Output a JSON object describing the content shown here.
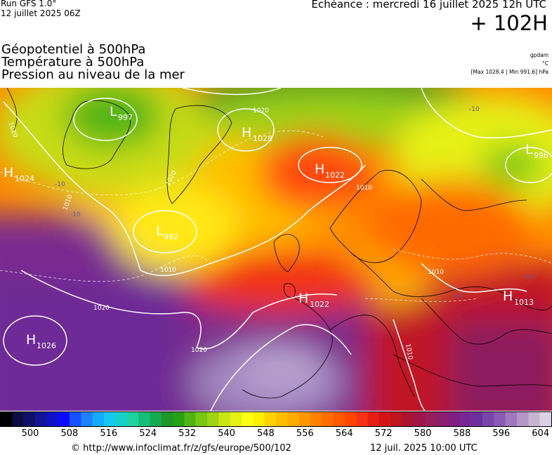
{
  "header": {
    "run_line1": "Run GFS 1.0°",
    "run_line2": "12 juillet 2025 06Z",
    "echeance": "Echéance : mercredi 16 juillet 2025 12h UTC",
    "lead": "+ 102H"
  },
  "titles": [
    "Géopotentiel à 500hPa",
    "Température à 500hPa",
    "Pression au niveau de la mer"
  ],
  "units": {
    "geopotential": "gpdam",
    "temperature": "°C",
    "pressure_range": "[Max 1028.4 | Min 991.6] hPa"
  },
  "pressure_centers": [
    {
      "type": "L",
      "value": "997"
    },
    {
      "type": "H",
      "value": "1028"
    },
    {
      "type": "H",
      "value": "1024"
    },
    {
      "type": "H",
      "value": "1022"
    },
    {
      "type": "L",
      "value": "996"
    },
    {
      "type": "L",
      "value": "992"
    },
    {
      "type": "H",
      "value": "1022"
    },
    {
      "type": "H",
      "value": "1013"
    },
    {
      "type": "H",
      "value": "1026"
    }
  ],
  "isobar_labels": [
    "1020",
    "1020",
    "1020",
    "1010",
    "1010",
    "1010",
    "1010",
    "1020",
    "1020",
    "1010"
  ],
  "isotherm_labels": [
    "-10",
    "-10",
    "-10",
    "-10",
    "-10"
  ],
  "colorbar": {
    "tick_labels": [
      "500",
      "508",
      "516",
      "524",
      "532",
      "540",
      "548",
      "556",
      "564",
      "572",
      "580",
      "588",
      "596",
      "604"
    ],
    "colors": [
      "#000000",
      "#0c0c40",
      "#10106a",
      "#141496",
      "#1010c8",
      "#0a0aff",
      "#1450ff",
      "#1e82ff",
      "#14aaff",
      "#14c8f0",
      "#14d2c8",
      "#1ed2a0",
      "#14be78",
      "#14aa50",
      "#1e9628",
      "#28a014",
      "#50b414",
      "#78c814",
      "#a0d214",
      "#c8e614",
      "#e6f014",
      "#ffff14",
      "#fff000",
      "#ffd200",
      "#ffbe00",
      "#ffaa00",
      "#ff9600",
      "#ff8200",
      "#ff6e00",
      "#ff5a00",
      "#ff4600",
      "#f53214",
      "#e61e14",
      "#d21414",
      "#be141e",
      "#aa1432",
      "#a01446",
      "#961e5a",
      "#8c1e6e",
      "#821e82",
      "#782896",
      "#6e32a0",
      "#7846aa",
      "#8c5ab4",
      "#a078be",
      "#b496c8",
      "#c8b4d2",
      "#dcd2e6"
    ],
    "color_labels": "palette from black through blue, cyan, green, yellow, orange, red to purple and pale lavender"
  },
  "footer": {
    "url": "© http://www.infoclimat.fr/z/gfs/europe/500/102",
    "date": "12 juil. 2025 10:00 UTC"
  }
}
